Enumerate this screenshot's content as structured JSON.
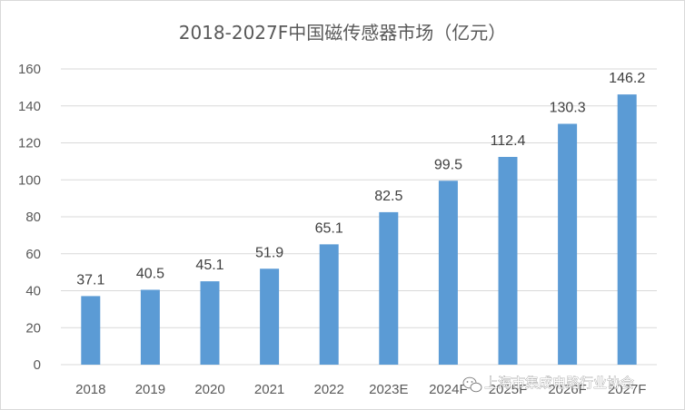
{
  "chart_data": {
    "type": "bar",
    "title": "2018-2027F中国磁传感器市场（亿元）",
    "categories": [
      "2018",
      "2019",
      "2020",
      "2021",
      "2022",
      "2023E",
      "2024F",
      "2025F",
      "2026F",
      "2027F"
    ],
    "values": [
      37.1,
      40.5,
      45.1,
      51.9,
      65.1,
      82.5,
      99.5,
      112.4,
      130.3,
      146.2
    ],
    "value_labels": [
      "37.1",
      "40.5",
      "45.1",
      "51.9",
      "65.1",
      "82.5",
      "99.5",
      "112.4",
      "130.3",
      "146.2"
    ],
    "ylim": [
      0,
      160
    ],
    "yticks": [
      0,
      20,
      40,
      60,
      80,
      100,
      120,
      140,
      160
    ],
    "ytick_labels": [
      "0",
      "20",
      "40",
      "60",
      "80",
      "100",
      "120",
      "140",
      "160"
    ],
    "grid": true,
    "legend": "none",
    "xlabel": "",
    "ylabel": ""
  },
  "colors": {
    "bar": "#5b9bd5",
    "grid": "#d9d9d9",
    "text": "#595959",
    "label": "#404040"
  },
  "watermark": {
    "text": "上海市集成电路行业协会",
    "icon": "wechat-icon"
  }
}
